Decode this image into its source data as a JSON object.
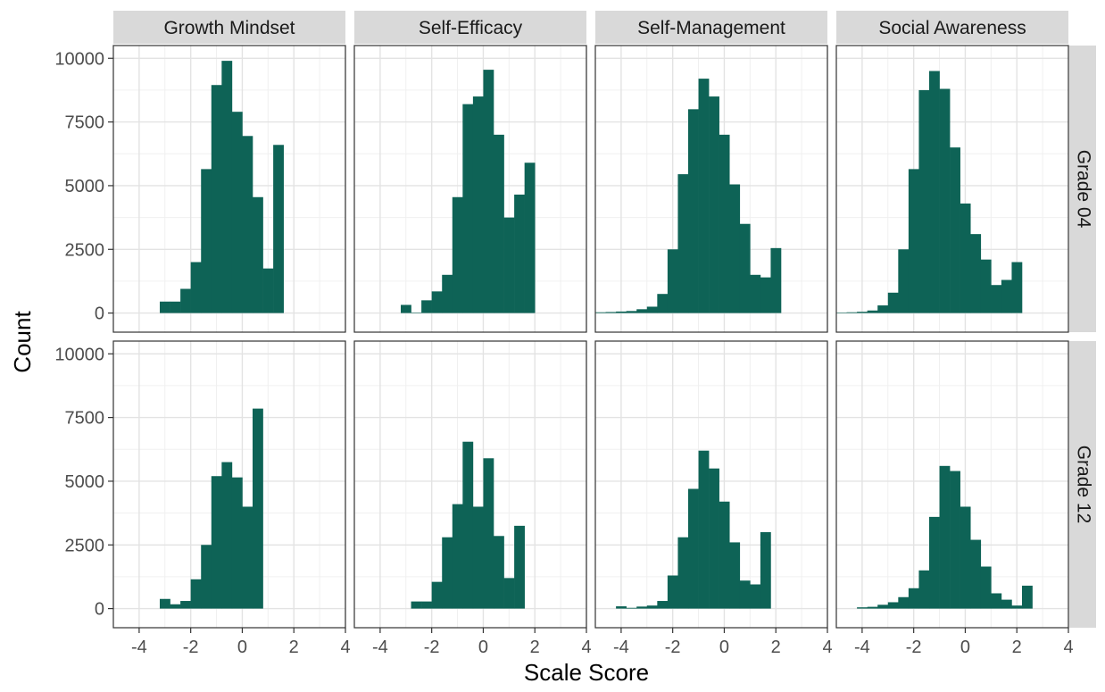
{
  "chart_data": {
    "type": "bar",
    "title": "",
    "xlabel": "Scale Score",
    "ylabel": "Count",
    "xlim": [
      -5,
      4
    ],
    "ylim": [
      -750,
      10500
    ],
    "xticks": [
      -4,
      -2,
      0,
      2,
      4
    ],
    "yticks": [
      0,
      2500,
      5000,
      7500,
      10000
    ],
    "bin_width": 0.4,
    "bar_color": "#0e6356",
    "facet_columns": [
      "Growth Mindset",
      "Self-Efficacy",
      "Self-Management",
      "Social Awareness"
    ],
    "facet_rows": [
      "Grade 04",
      "Grade 12"
    ],
    "grid": true,
    "panels": [
      {
        "column": "Growth Mindset",
        "row": "Grade 04",
        "bins": [
          [
            -3.2,
            450
          ],
          [
            -2.8,
            450
          ],
          [
            -2.4,
            950
          ],
          [
            -2.0,
            2000
          ],
          [
            -1.6,
            5650
          ],
          [
            -1.2,
            8950
          ],
          [
            -0.8,
            9900
          ],
          [
            -0.4,
            7900
          ],
          [
            0.0,
            6950
          ],
          [
            0.4,
            4550
          ],
          [
            0.8,
            1750
          ],
          [
            1.2,
            6600
          ]
        ]
      },
      {
        "column": "Self-Efficacy",
        "row": "Grade 04",
        "bins": [
          [
            -3.2,
            320
          ],
          [
            -2.8,
            20
          ],
          [
            -2.4,
            500
          ],
          [
            -2.0,
            850
          ],
          [
            -1.6,
            1500
          ],
          [
            -1.2,
            4550
          ],
          [
            -0.8,
            8200
          ],
          [
            -0.4,
            8500
          ],
          [
            0.0,
            9550
          ],
          [
            0.4,
            7000
          ],
          [
            0.8,
            3750
          ],
          [
            1.2,
            4650
          ],
          [
            1.6,
            5900
          ]
        ]
      },
      {
        "column": "Self-Management",
        "row": "Grade 04",
        "bins": [
          [
            -5.0,
            30
          ],
          [
            -4.6,
            40
          ],
          [
            -4.2,
            60
          ],
          [
            -3.8,
            80
          ],
          [
            -3.4,
            150
          ],
          [
            -3.0,
            250
          ],
          [
            -2.6,
            750
          ],
          [
            -2.2,
            2500
          ],
          [
            -1.8,
            5450
          ],
          [
            -1.4,
            8000
          ],
          [
            -1.0,
            9200
          ],
          [
            -0.6,
            8500
          ],
          [
            -0.2,
            7000
          ],
          [
            0.2,
            5050
          ],
          [
            0.6,
            3500
          ],
          [
            1.0,
            1500
          ],
          [
            1.4,
            1400
          ],
          [
            1.8,
            2550
          ]
        ]
      },
      {
        "column": "Social Awareness",
        "row": "Grade 04",
        "bins": [
          [
            -5.0,
            20
          ],
          [
            -4.6,
            30
          ],
          [
            -4.2,
            50
          ],
          [
            -3.8,
            100
          ],
          [
            -3.4,
            300
          ],
          [
            -3.0,
            800
          ],
          [
            -2.6,
            2500
          ],
          [
            -2.2,
            5650
          ],
          [
            -1.8,
            8750
          ],
          [
            -1.4,
            9500
          ],
          [
            -1.0,
            8800
          ],
          [
            -0.6,
            6500
          ],
          [
            -0.2,
            4300
          ],
          [
            0.2,
            3100
          ],
          [
            0.6,
            2100
          ],
          [
            1.0,
            1100
          ],
          [
            1.4,
            1300
          ],
          [
            1.8,
            2000
          ]
        ]
      },
      {
        "column": "Growth Mindset",
        "row": "Grade 12",
        "bins": [
          [
            -3.2,
            380
          ],
          [
            -2.8,
            170
          ],
          [
            -2.4,
            300
          ],
          [
            -2.0,
            1150
          ],
          [
            -1.6,
            2500
          ],
          [
            -1.2,
            5200
          ],
          [
            -0.8,
            5750
          ],
          [
            -0.4,
            5150
          ],
          [
            0.0,
            4000
          ],
          [
            0.4,
            7850
          ]
        ]
      },
      {
        "column": "Self-Efficacy",
        "row": "Grade 12",
        "bins": [
          [
            -2.8,
            280
          ],
          [
            -2.4,
            280
          ],
          [
            -2.0,
            1050
          ],
          [
            -1.6,
            2800
          ],
          [
            -1.2,
            4100
          ],
          [
            -0.8,
            6550
          ],
          [
            -0.4,
            4000
          ],
          [
            0.0,
            5900
          ],
          [
            0.4,
            2850
          ],
          [
            0.8,
            1200
          ],
          [
            1.2,
            3250
          ]
        ]
      },
      {
        "column": "Self-Management",
        "row": "Grade 12",
        "bins": [
          [
            -4.2,
            90
          ],
          [
            -3.8,
            30
          ],
          [
            -3.4,
            80
          ],
          [
            -3.0,
            120
          ],
          [
            -2.6,
            300
          ],
          [
            -2.2,
            1300
          ],
          [
            -1.8,
            2800
          ],
          [
            -1.4,
            4700
          ],
          [
            -1.0,
            6200
          ],
          [
            -0.6,
            5500
          ],
          [
            -0.2,
            4200
          ],
          [
            0.2,
            2600
          ],
          [
            0.6,
            1100
          ],
          [
            1.0,
            950
          ],
          [
            1.4,
            3000
          ]
        ]
      },
      {
        "column": "Social Awareness",
        "row": "Grade 12",
        "bins": [
          [
            -4.2,
            50
          ],
          [
            -3.8,
            70
          ],
          [
            -3.4,
            150
          ],
          [
            -3.0,
            250
          ],
          [
            -2.6,
            450
          ],
          [
            -2.2,
            800
          ],
          [
            -1.8,
            1500
          ],
          [
            -1.4,
            3600
          ],
          [
            -1.0,
            5600
          ],
          [
            -0.6,
            5400
          ],
          [
            -0.2,
            4000
          ],
          [
            0.2,
            2700
          ],
          [
            0.6,
            1650
          ],
          [
            1.0,
            600
          ],
          [
            1.4,
            350
          ],
          [
            1.8,
            120
          ],
          [
            2.2,
            900
          ]
        ]
      }
    ]
  }
}
